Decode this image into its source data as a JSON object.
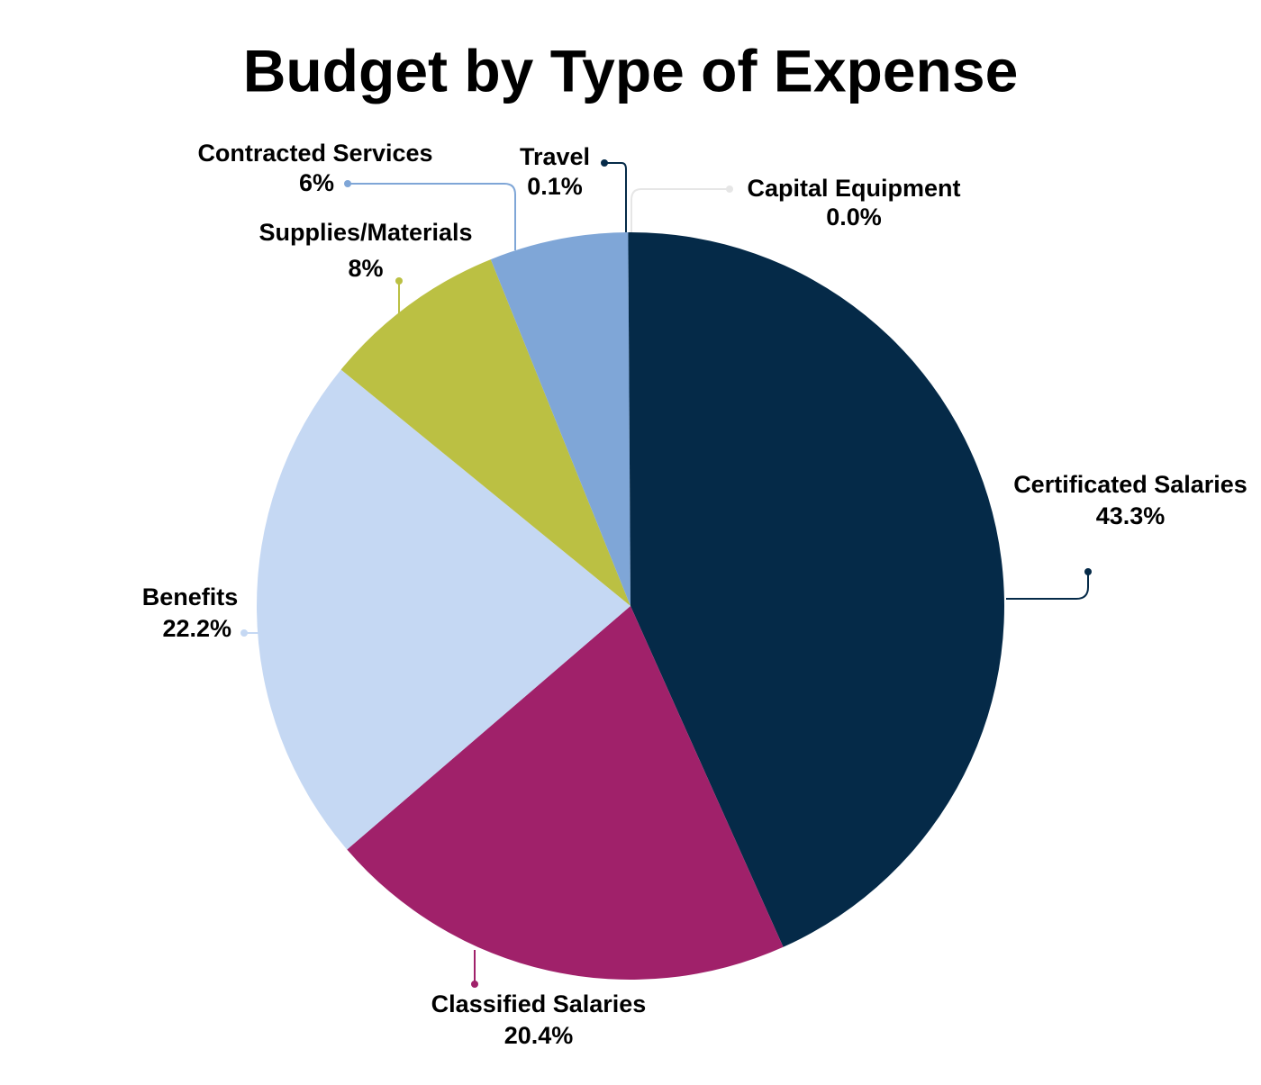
{
  "chart_data": {
    "type": "pie",
    "title": "Budget by Type of Expense",
    "categories": [
      "Certificated Salaries",
      "Classified Salaries",
      "Benefits",
      "Supplies/Materials",
      "Contracted Services",
      "Travel",
      "Capital Equipment"
    ],
    "values": [
      43.3,
      20.4,
      22.2,
      8,
      6,
      0.1,
      0.0
    ],
    "value_labels": [
      "43.3%",
      "20.4%",
      "22.2%",
      "8%",
      "6%",
      "0.1%",
      "0.0%"
    ],
    "colors": [
      "#052a48",
      "#a0216a",
      "#c5d8f3",
      "#bbc043",
      "#7fa6d7",
      "#052a48",
      "#e6e6e6"
    ]
  }
}
